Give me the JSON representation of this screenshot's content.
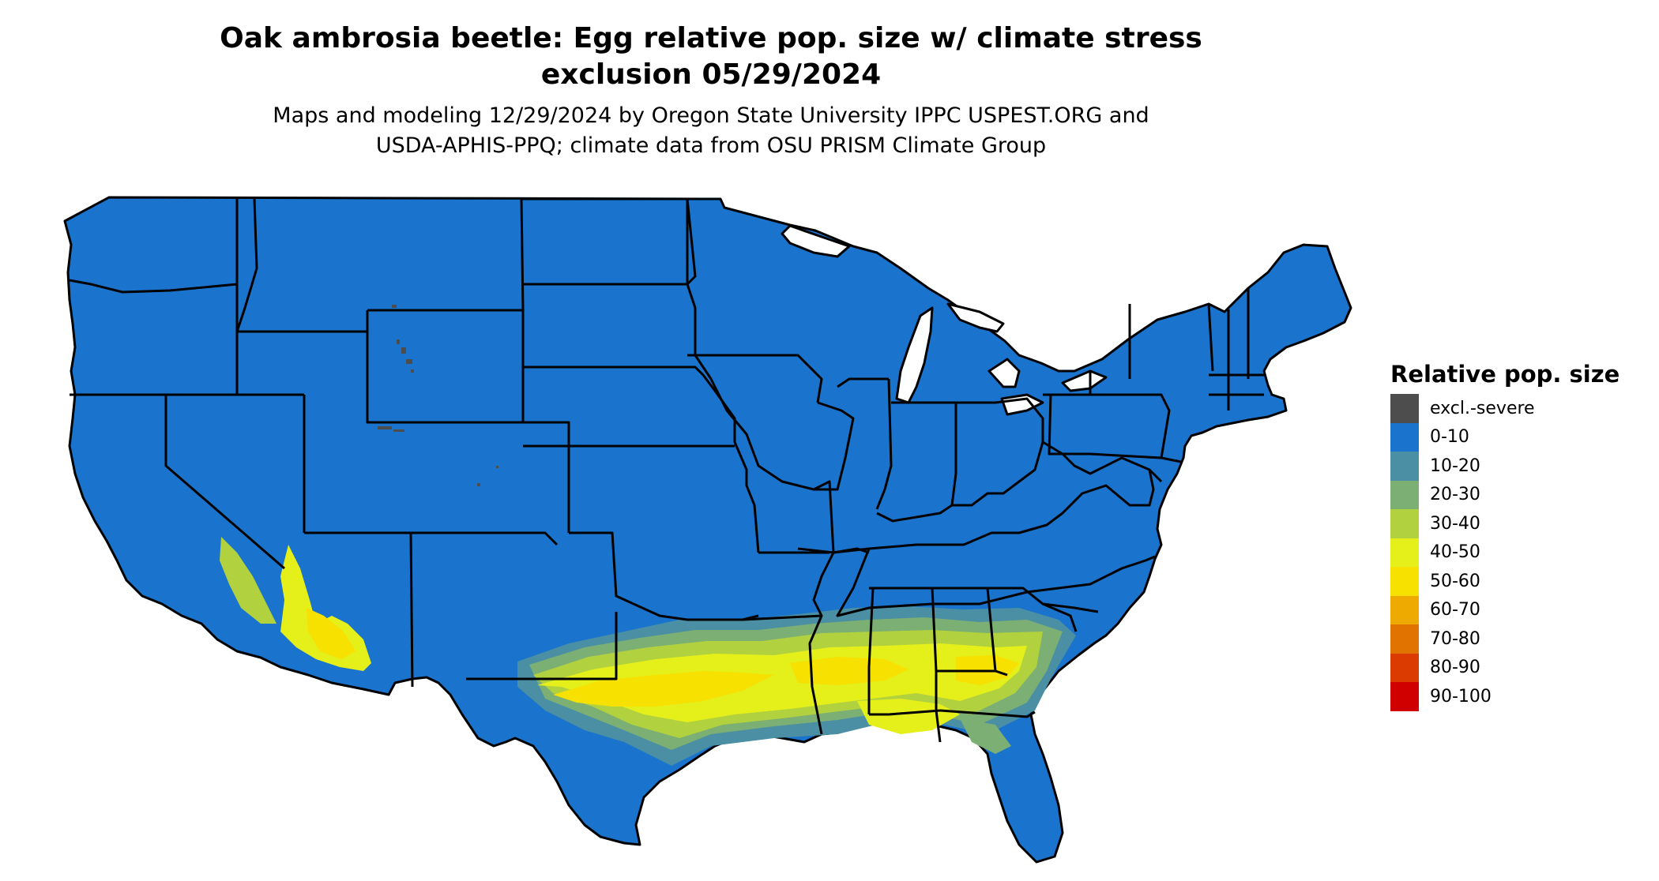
{
  "title": {
    "line1": "Oak ambrosia beetle: Egg relative pop. size w/ climate stress",
    "line2": "exclusion 05/29/2024"
  },
  "subtitle": {
    "line1": "Maps and modeling 12/29/2024 by Oregon State University IPPC USPEST.ORG and",
    "line2": "USDA-APHIS-PPQ; climate data from OSU PRISM Climate Group"
  },
  "map": {
    "region": "Contiguous United States",
    "base_category": "0-10",
    "colors": {
      "background_fill": "#1a73cc",
      "state_borders": "#000000"
    }
  },
  "legend": {
    "title": "Relative pop. size",
    "items": [
      {
        "label": "excl.-severe",
        "color": "#4d4d4d"
      },
      {
        "label": "0-10",
        "color": "#1a73cc"
      },
      {
        "label": "10-20",
        "color": "#4a8fa3"
      },
      {
        "label": "20-30",
        "color": "#7caf74"
      },
      {
        "label": "30-40",
        "color": "#b1d13e"
      },
      {
        "label": "40-50",
        "color": "#e5ef1a"
      },
      {
        "label": "50-60",
        "color": "#f7e100"
      },
      {
        "label": "60-70",
        "color": "#efaa00"
      },
      {
        "label": "70-80",
        "color": "#e17300"
      },
      {
        "label": "80-90",
        "color": "#db3a00"
      },
      {
        "label": "90-100",
        "color": "#d00000"
      }
    ]
  }
}
